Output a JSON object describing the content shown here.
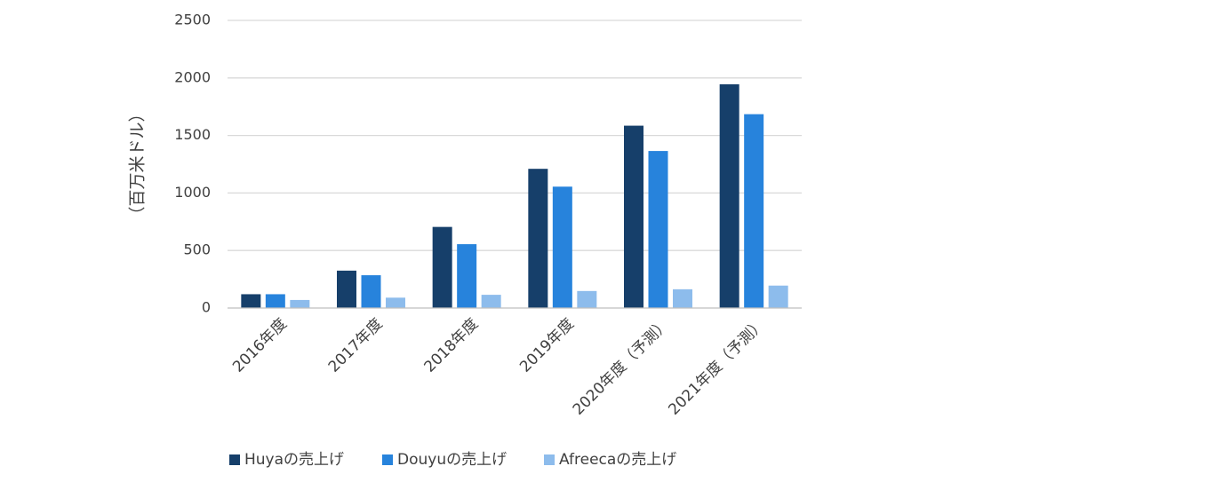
{
  "chart_data": {
    "type": "bar",
    "title": "",
    "xlabel": "",
    "ylabel": "（百万米ドル）",
    "ylim": [
      0,
      2500
    ],
    "yticks": [
      0,
      500,
      1000,
      1500,
      2000,
      2500
    ],
    "grid": true,
    "legend_position": "bottom",
    "categories": [
      "2016年度",
      "2017年度",
      "2018年度",
      "2019年度",
      "2020年度（予測）",
      "2021年度（予測）"
    ],
    "series": [
      {
        "name": "Huyaの売上げ",
        "color": "#163f6a",
        "values": [
          120,
          325,
          705,
          1210,
          1585,
          1945
        ]
      },
      {
        "name": "Douyuの売上げ",
        "color": "#2783dc",
        "values": [
          120,
          285,
          555,
          1055,
          1365,
          1685
        ]
      },
      {
        "name": "Afreecaの売上げ",
        "color": "#8dbcec",
        "values": [
          70,
          90,
          115,
          148,
          163,
          195
        ]
      }
    ]
  },
  "colors": {
    "gridline": "#d9d9d9",
    "axis": "#bfbfbf",
    "text": "#404040"
  }
}
